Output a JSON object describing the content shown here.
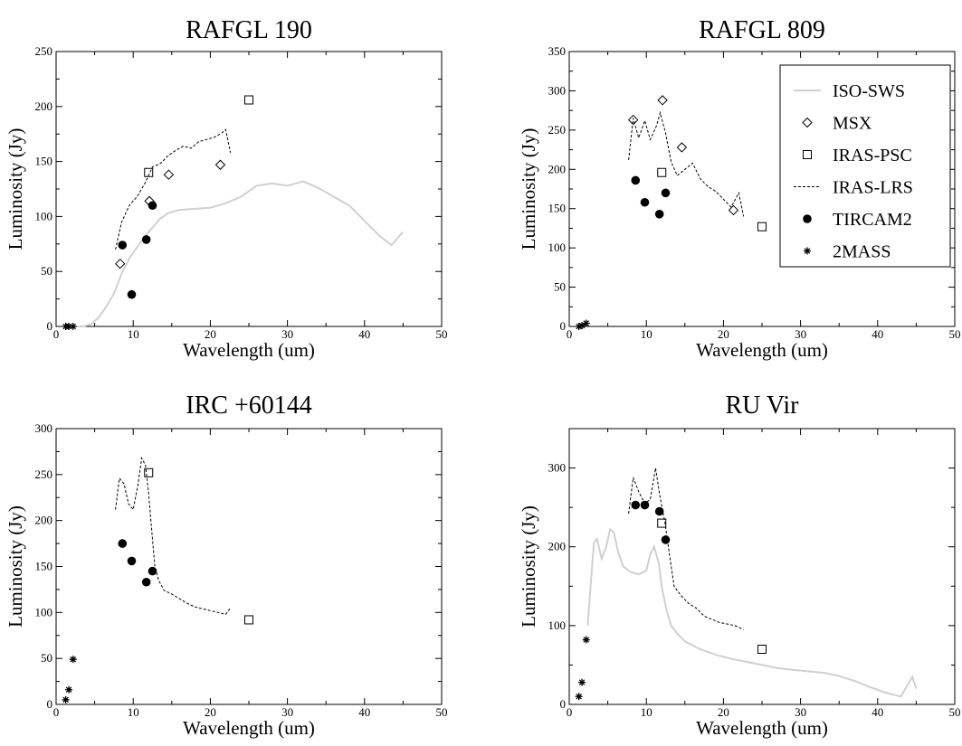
{
  "figure": {
    "legend": {
      "entries": [
        {
          "name": "ISO-SWS",
          "marker": "gray-line"
        },
        {
          "name": "MSX",
          "marker": "diamond"
        },
        {
          "name": "IRAS-PSC",
          "marker": "square"
        },
        {
          "name": "IRAS-LRS",
          "marker": "dashed-line"
        },
        {
          "name": "TIRCAM2",
          "marker": "filled-circle"
        },
        {
          "name": "2MASS",
          "marker": "asterisk"
        }
      ],
      "panel": 1,
      "placement": "top-right"
    },
    "colors": {
      "iso": "#d0d0d0",
      "lrs": "#000000",
      "marker": "#000000"
    }
  },
  "chart_data": [
    {
      "type": "scatter",
      "title": "RAFGL 190",
      "xlabel": "Wavelength (um)",
      "ylabel": "Luminosity (Jy)",
      "xlim": [
        0,
        50
      ],
      "ylim": [
        0,
        250
      ],
      "xticks": [
        "0",
        "10",
        "20",
        "30",
        "40",
        "50"
      ],
      "yticks": [
        "0",
        "50",
        "100",
        "150",
        "200",
        "250"
      ],
      "grid": false,
      "series": [
        {
          "name": "ISO-SWS",
          "kind": "line",
          "x": [
            2.4,
            3.5,
            4.5,
            5.5,
            6.5,
            7.5,
            8.5,
            9.5,
            10.5,
            11.5,
            12.5,
            13.5,
            14.5,
            16,
            18,
            20,
            22,
            24,
            26,
            28,
            30,
            32,
            34,
            36,
            38,
            40,
            42,
            43.5,
            45
          ],
          "y": [
            0,
            0,
            2,
            8,
            18,
            30,
            48,
            62,
            72,
            82,
            90,
            98,
            103,
            106,
            107,
            108,
            112,
            118,
            128,
            130,
            128,
            132,
            126,
            118,
            110,
            96,
            82,
            74,
            86
          ]
        },
        {
          "name": "MSX",
          "kind": "marker",
          "x": [
            8.3,
            12.1,
            14.6,
            21.3
          ],
          "y": [
            57,
            114,
            138,
            147
          ]
        },
        {
          "name": "IRAS-PSC",
          "kind": "marker",
          "x": [
            12,
            25
          ],
          "y": [
            140,
            206
          ]
        },
        {
          "name": "IRAS-LRS",
          "kind": "line",
          "x": [
            7.7,
            8.5,
            9.5,
            10.5,
            11.5,
            12.5,
            13.5,
            14.5,
            15.5,
            16.5,
            17.5,
            18.5,
            19.5,
            20.5,
            21.5,
            22,
            22.6
          ],
          "y": [
            70,
            95,
            110,
            118,
            130,
            145,
            148,
            155,
            160,
            164,
            162,
            168,
            170,
            172,
            176,
            179,
            158
          ]
        },
        {
          "name": "TIRCAM2",
          "kind": "marker",
          "x": [
            8.6,
            9.8,
            11.7,
            12.5
          ],
          "y": [
            74,
            29,
            79,
            110
          ]
        },
        {
          "name": "2MASS",
          "kind": "marker",
          "x": [
            1.25,
            1.65,
            2.2
          ],
          "y": [
            0,
            0,
            0
          ]
        }
      ]
    },
    {
      "type": "scatter",
      "title": "RAFGL 809",
      "xlabel": "Wavelength (um)",
      "ylabel": "Luminosity (Jy)",
      "xlim": [
        0,
        50
      ],
      "ylim": [
        0,
        350
      ],
      "xticks": [
        "0",
        "10",
        "20",
        "30",
        "40",
        "50"
      ],
      "yticks": [
        "0",
        "50",
        "100",
        "150",
        "200",
        "250",
        "300",
        "350"
      ],
      "grid": false,
      "series": [
        {
          "name": "MSX",
          "kind": "marker",
          "x": [
            8.3,
            12.1,
            14.6,
            21.3
          ],
          "y": [
            263,
            288,
            228,
            148
          ]
        },
        {
          "name": "IRAS-PSC",
          "kind": "marker",
          "x": [
            12,
            25
          ],
          "y": [
            196,
            127
          ]
        },
        {
          "name": "IRAS-LRS",
          "kind": "line",
          "x": [
            7.7,
            8.3,
            9,
            9.8,
            10.5,
            11.3,
            11.8,
            12.5,
            13.2,
            14,
            15,
            16,
            17,
            18,
            19,
            20,
            21,
            22,
            22.6
          ],
          "y": [
            212,
            265,
            240,
            262,
            238,
            255,
            272,
            246,
            210,
            192,
            200,
            208,
            188,
            178,
            172,
            162,
            152,
            170,
            140
          ]
        },
        {
          "name": "TIRCAM2",
          "kind": "marker",
          "x": [
            8.6,
            9.8,
            11.7,
            12.5
          ],
          "y": [
            186,
            158,
            143,
            170
          ]
        },
        {
          "name": "2MASS",
          "kind": "marker",
          "x": [
            1.25,
            1.65,
            2.2
          ],
          "y": [
            0,
            1,
            4
          ]
        }
      ]
    },
    {
      "type": "scatter",
      "title": "IRC +60144",
      "xlabel": "Wavelength (um)",
      "ylabel": "Luminosity (Jy)",
      "xlim": [
        0,
        50
      ],
      "ylim": [
        0,
        300
      ],
      "xticks": [
        "0",
        "10",
        "20",
        "30",
        "40",
        "50"
      ],
      "yticks": [
        "0",
        "50",
        "100",
        "150",
        "200",
        "250",
        "300"
      ],
      "grid": false,
      "series": [
        {
          "name": "IRAS-PSC",
          "kind": "marker",
          "x": [
            12,
            25
          ],
          "y": [
            252,
            92
          ]
        },
        {
          "name": "IRAS-LRS",
          "kind": "line",
          "x": [
            7.7,
            8.2,
            8.8,
            9.4,
            10,
            10.6,
            11.1,
            11.6,
            12,
            12.4,
            12.8,
            13.3,
            14,
            15,
            16,
            17,
            18,
            19,
            20,
            21,
            22,
            22.6
          ],
          "y": [
            212,
            246,
            240,
            218,
            212,
            238,
            268,
            260,
            230,
            190,
            150,
            135,
            124,
            120,
            115,
            110,
            106,
            104,
            102,
            100,
            98,
            105
          ]
        },
        {
          "name": "TIRCAM2",
          "kind": "marker",
          "x": [
            8.6,
            9.8,
            11.7,
            12.5
          ],
          "y": [
            175,
            156,
            133,
            145
          ]
        },
        {
          "name": "2MASS",
          "kind": "marker",
          "x": [
            1.25,
            1.65,
            2.2
          ],
          "y": [
            5,
            16,
            49
          ]
        }
      ]
    },
    {
      "type": "scatter",
      "title": "RU Vir",
      "xlabel": "Wavelength (um)",
      "ylabel": "Luminosity (Jy)",
      "xlim": [
        0,
        50
      ],
      "ylim": [
        0,
        350
      ],
      "xticks": [
        "0",
        "10",
        "20",
        "30",
        "40",
        "50"
      ],
      "yticks": [
        "0",
        "100",
        "200",
        "300"
      ],
      "grid": false,
      "series": [
        {
          "name": "ISO-SWS",
          "kind": "line",
          "x": [
            2.4,
            2.8,
            3.2,
            3.6,
            4.2,
            4.8,
            5.3,
            5.8,
            6.3,
            7,
            8,
            9,
            10,
            10.5,
            11,
            11.6,
            12,
            12.6,
            13.2,
            14,
            15,
            17,
            19,
            21,
            23,
            25,
            27,
            29,
            31,
            33,
            35,
            37,
            39,
            41,
            43,
            44.5,
            45
          ],
          "y": [
            100,
            155,
            205,
            210,
            185,
            200,
            222,
            218,
            195,
            175,
            168,
            165,
            170,
            190,
            200,
            180,
            150,
            120,
            100,
            90,
            80,
            70,
            63,
            58,
            54,
            50,
            46,
            44,
            42,
            40,
            36,
            30,
            22,
            15,
            10,
            35,
            20
          ]
        },
        {
          "name": "IRAS-PSC",
          "kind": "marker",
          "x": [
            12,
            25
          ],
          "y": [
            230,
            70
          ]
        },
        {
          "name": "IRAS-LRS",
          "kind": "line",
          "x": [
            7.7,
            8.3,
            9,
            9.8,
            10.5,
            11.2,
            11.8,
            12.4,
            13,
            13.6,
            14.5,
            15.5,
            16.5,
            17.5,
            18.5,
            19.5,
            20.5,
            21.5,
            22.6
          ],
          "y": [
            242,
            288,
            270,
            255,
            260,
            300,
            262,
            232,
            190,
            150,
            138,
            128,
            122,
            112,
            108,
            104,
            102,
            100,
            95
          ]
        },
        {
          "name": "TIRCAM2",
          "kind": "marker",
          "x": [
            8.6,
            9.8,
            11.7,
            12.5
          ],
          "y": [
            253,
            253,
            245,
            209
          ]
        },
        {
          "name": "2MASS",
          "kind": "marker",
          "x": [
            1.25,
            1.65,
            2.2
          ],
          "y": [
            10,
            28,
            82
          ]
        }
      ]
    }
  ]
}
